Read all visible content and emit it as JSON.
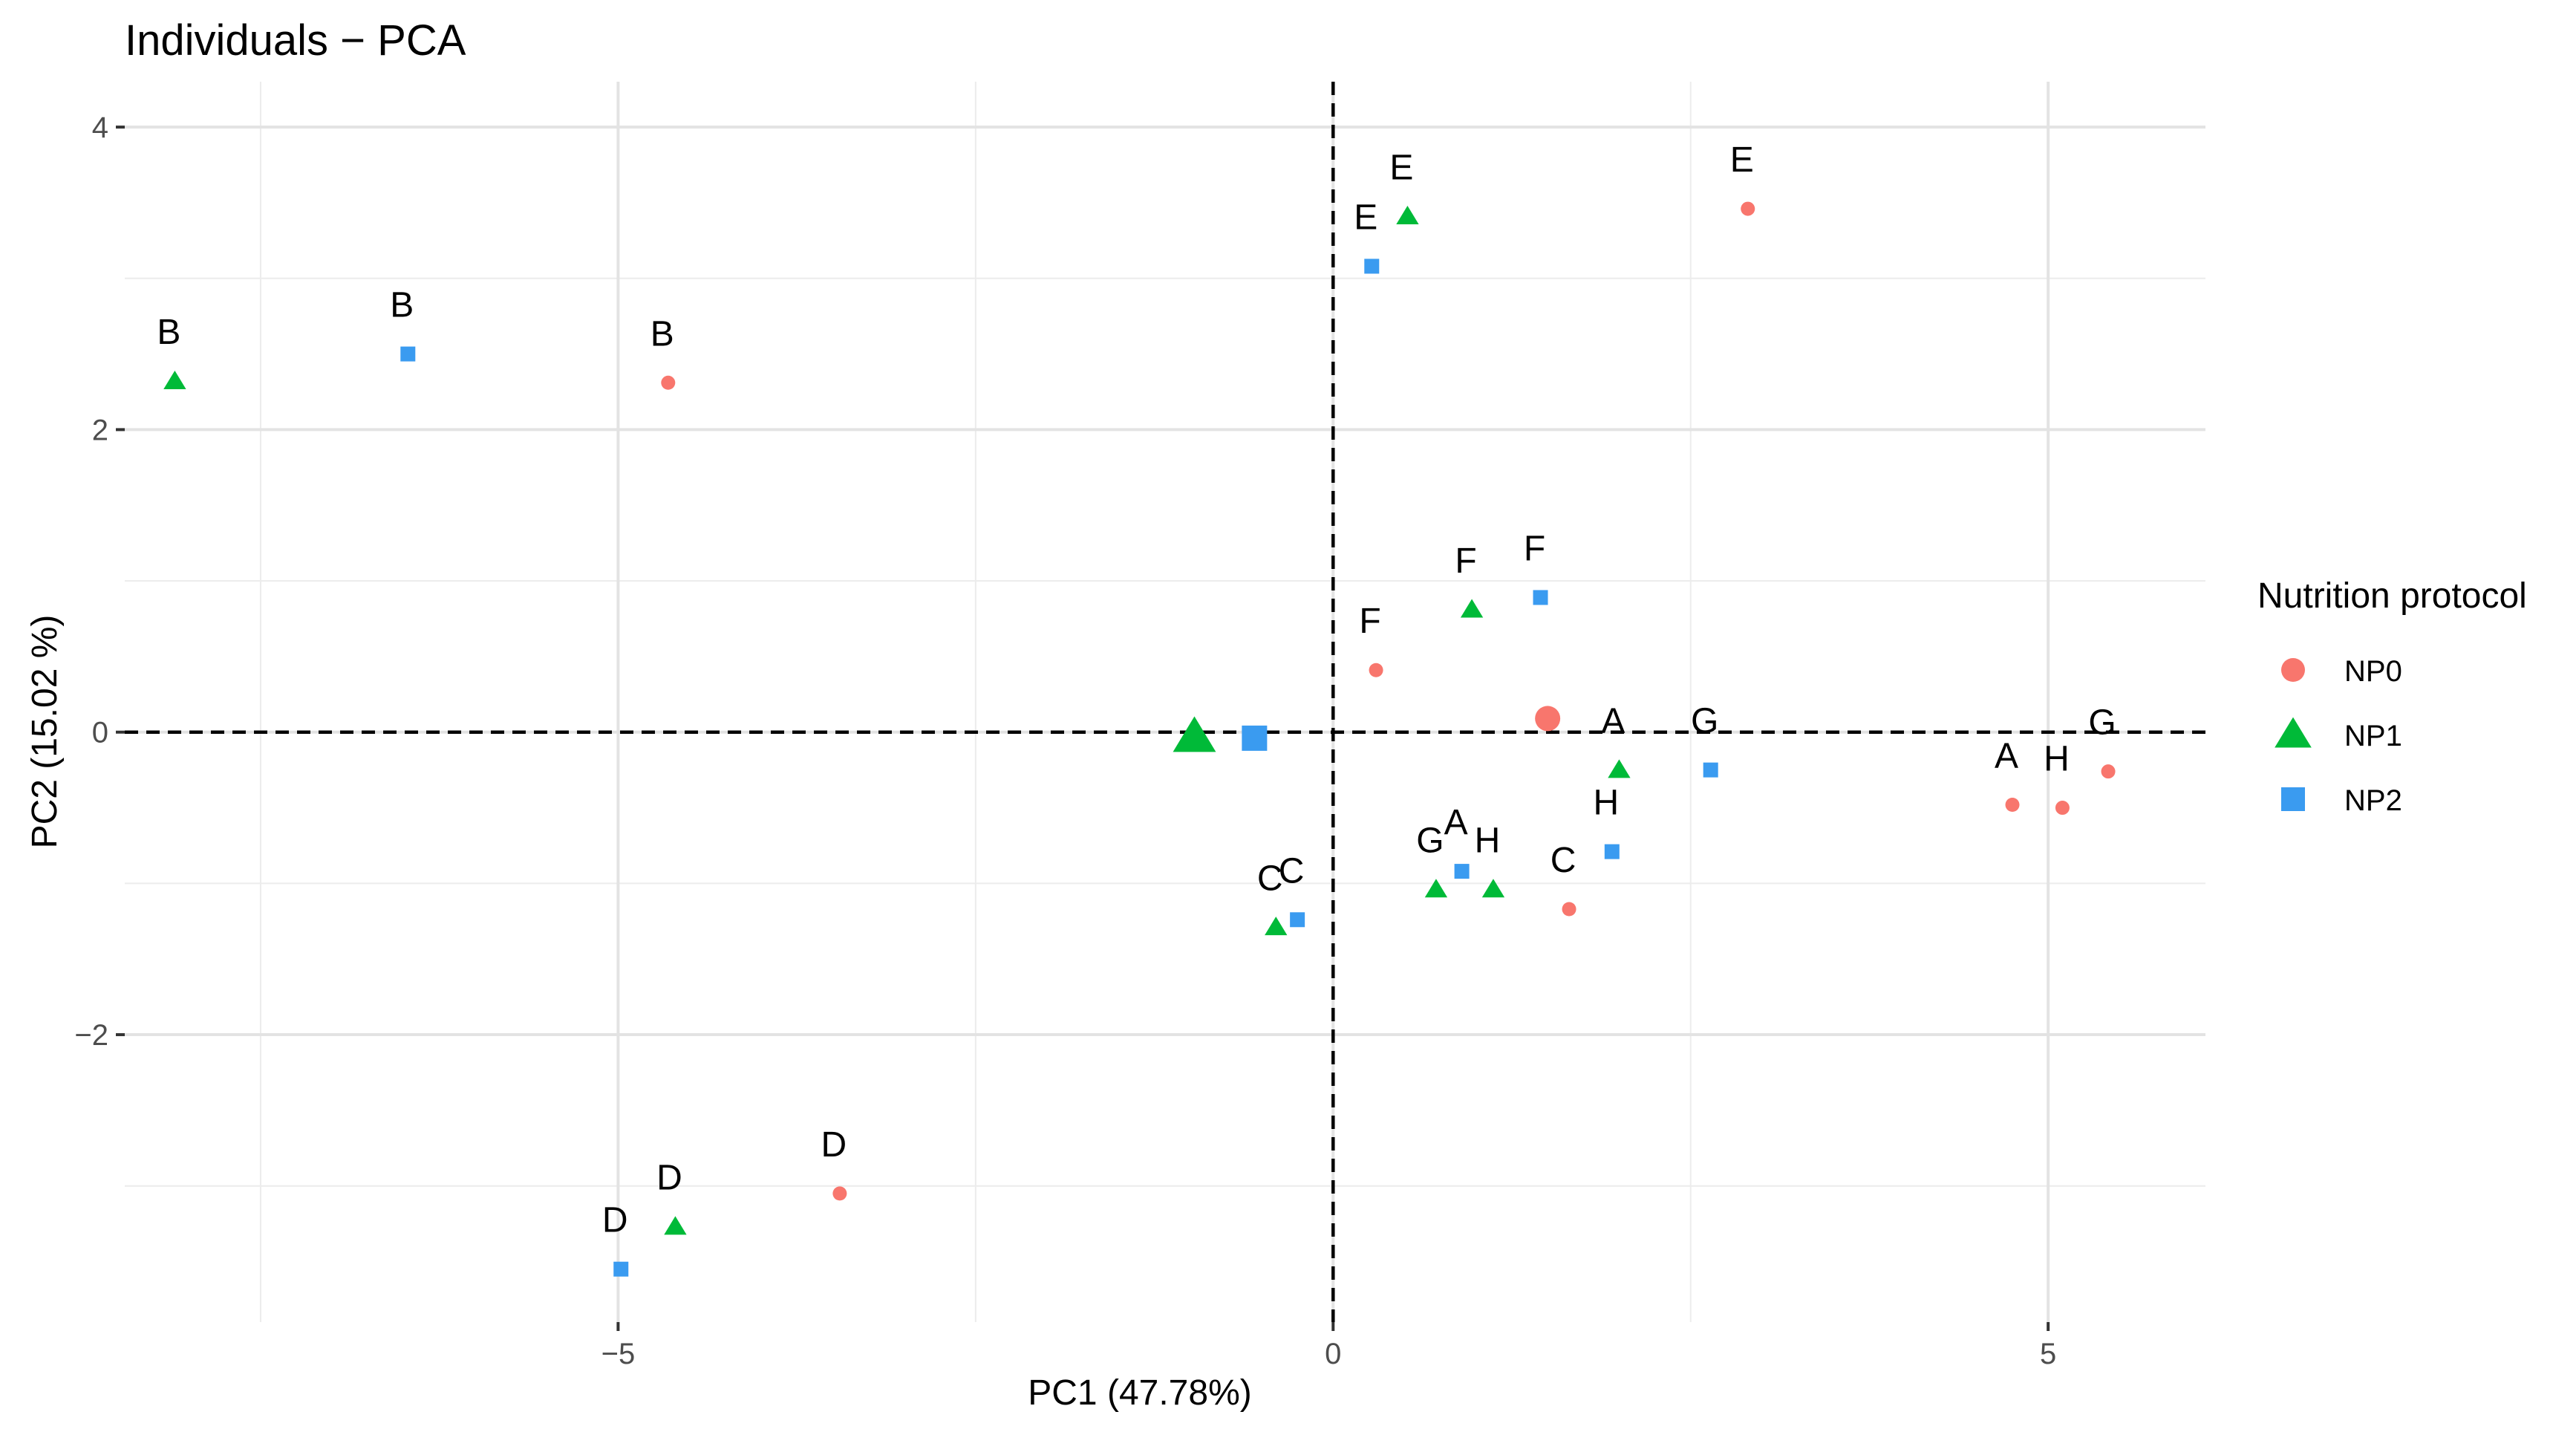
{
  "chart_data": {
    "type": "scatter",
    "title": "Individuals − PCA",
    "xlabel": "PC1 (47.78%)",
    "ylabel": "PC2 (15.02 %)",
    "xlim": [
      -8.45,
      6.1
    ],
    "ylim": [
      -3.9,
      4.3
    ],
    "x_ticks": [
      -5,
      0,
      5
    ],
    "x_tick_labels": [
      "−5",
      "0",
      "5"
    ],
    "y_ticks": [
      -2,
      0,
      2,
      4
    ],
    "y_tick_labels": [
      "−2",
      "0",
      "2",
      "4"
    ],
    "x_minor_ticks": [
      -7.5,
      -2.5,
      2.5
    ],
    "y_minor_ticks": [
      -3,
      -1,
      1,
      3
    ],
    "grid": true,
    "reference_lines": [
      {
        "orientation": "horizontal",
        "value": 0,
        "style": "dashed"
      },
      {
        "orientation": "vertical",
        "value": 0,
        "style": "dashed"
      }
    ],
    "legend": {
      "title": "Nutrition protocol",
      "position": "right",
      "entries": [
        {
          "label": "NP0",
          "shape": "circle",
          "color": "#F8766D"
        },
        {
          "label": "NP1",
          "shape": "triangle",
          "color": "#00BA38"
        },
        {
          "label": "NP2",
          "shape": "square",
          "color": "#3A9BF0"
        }
      ]
    },
    "series": [
      {
        "name": "NP0",
        "shape": "circle",
        "color": "#F8766D",
        "points": [
          {
            "label": "A",
            "x": 4.75,
            "y": -0.48
          },
          {
            "label": "B",
            "x": -4.65,
            "y": 2.31
          },
          {
            "label": "C",
            "x": 1.65,
            "y": -1.17
          },
          {
            "label": "D",
            "x": -3.45,
            "y": -3.05
          },
          {
            "label": "E",
            "x": 2.9,
            "y": 3.46
          },
          {
            "label": "F",
            "x": 0.3,
            "y": 0.41
          },
          {
            "label": "G",
            "x": 5.42,
            "y": -0.26
          },
          {
            "label": "H",
            "x": 5.1,
            "y": -0.5
          }
        ],
        "centroid": {
          "x": 1.5,
          "y": 0.09
        }
      },
      {
        "name": "NP1",
        "shape": "triangle",
        "color": "#00BA38",
        "points": [
          {
            "label": "A",
            "x": 2.0,
            "y": -0.25
          },
          {
            "label": "B",
            "x": -8.1,
            "y": 2.32
          },
          {
            "label": "C",
            "x": -0.4,
            "y": -1.29
          },
          {
            "label": "D",
            "x": -4.6,
            "y": -3.27
          },
          {
            "label": "E",
            "x": 0.52,
            "y": 3.41
          },
          {
            "label": "F",
            "x": 0.97,
            "y": 0.81
          },
          {
            "label": "G",
            "x": 0.72,
            "y": -1.04
          },
          {
            "label": "H",
            "x": 1.12,
            "y": -1.04
          }
        ],
        "centroid": {
          "x": -0.97,
          "y": -0.03
        }
      },
      {
        "name": "NP2",
        "shape": "square",
        "color": "#3A9BF0",
        "points": [
          {
            "label": "A",
            "x": 0.9,
            "y": -0.92
          },
          {
            "label": "B",
            "x": -6.47,
            "y": 2.5
          },
          {
            "label": "C",
            "x": -0.25,
            "y": -1.24
          },
          {
            "label": "D",
            "x": -4.98,
            "y": -3.55
          },
          {
            "label": "E",
            "x": 0.27,
            "y": 3.08
          },
          {
            "label": "F",
            "x": 1.45,
            "y": 0.89
          },
          {
            "label": "G",
            "x": 2.64,
            "y": -0.25
          },
          {
            "label": "H",
            "x": 1.95,
            "y": -0.79
          }
        ],
        "centroid": {
          "x": -0.55,
          "y": -0.04
        }
      }
    ]
  }
}
